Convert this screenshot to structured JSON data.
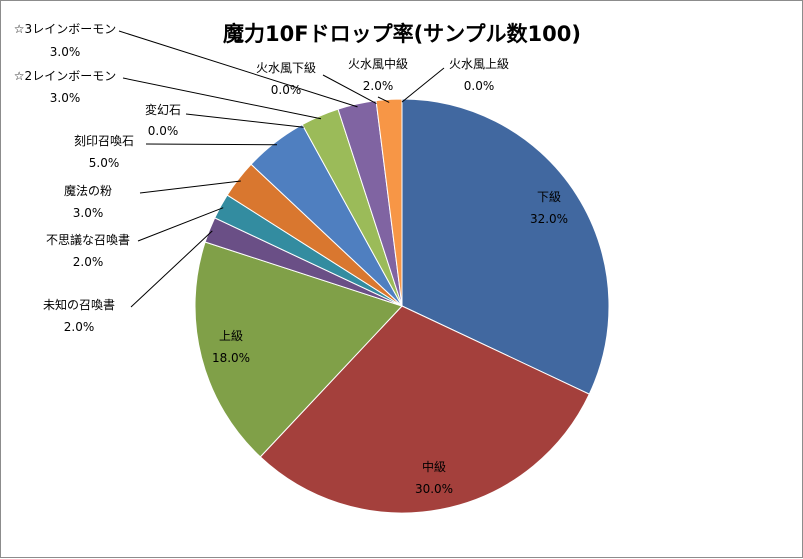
{
  "chart_data": {
    "type": "pie",
    "title": "魔力10Fドロップ率(サンプル数100)",
    "start_angle_deg": 0,
    "direction": "clockwise",
    "slices": [
      {
        "name": "下級",
        "value": 32,
        "pct": "32.0%",
        "color": "#4168a0"
      },
      {
        "name": "中級",
        "value": 30,
        "pct": "30.0%",
        "color": "#a4403c"
      },
      {
        "name": "上級",
        "value": 18,
        "pct": "18.0%",
        "color": "#80a048"
      },
      {
        "name": "未知の召喚書",
        "value": 2,
        "pct": "2.0%",
        "color": "#6a4f86"
      },
      {
        "name": "不思議な召喚書",
        "value": 2,
        "pct": "2.0%",
        "color": "#338ca0"
      },
      {
        "name": "魔法の粉",
        "value": 3,
        "pct": "3.0%",
        "color": "#d9772f"
      },
      {
        "name": "刻印召喚石",
        "value": 5,
        "pct": "5.0%",
        "color": "#4f7fc0"
      },
      {
        "name": "変幻石",
        "value": 0,
        "pct": "0.0%",
        "color": "#c05050"
      },
      {
        "name": "☆2レインボーモン",
        "value": 3,
        "pct": "3.0%",
        "color": "#9bbb59"
      },
      {
        "name": "☆3レインボーモン",
        "value": 3,
        "pct": "3.0%",
        "color": "#8064a2"
      },
      {
        "name": "火水風下級",
        "value": 0,
        "pct": "0.0%",
        "color": "#4bacc6"
      },
      {
        "name": "火水風中級",
        "value": 2,
        "pct": "2.0%",
        "color": "#f79646"
      },
      {
        "name": "火水風上級",
        "value": 0,
        "pct": "0.0%",
        "color": "#2c4d75"
      }
    ]
  }
}
